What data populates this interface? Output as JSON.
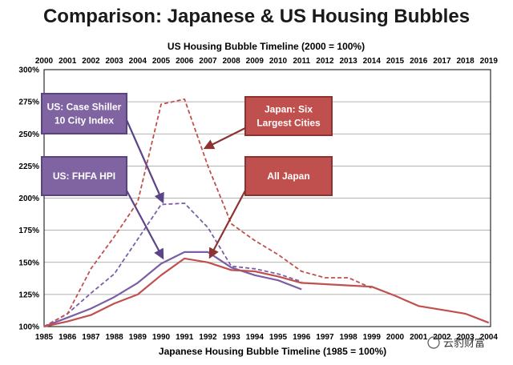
{
  "chart_data": {
    "type": "line",
    "title": "Comparison: Japanese & US Housing Bubbles",
    "top_axis_title": "US Housing Bubble Timeline (2000 = 100%)",
    "bottom_axis_title": "Japanese Housing Bubble Timeline (1985 = 100%)",
    "x_top_ticks": [
      "2000",
      "2001",
      "2002",
      "2003",
      "2004",
      "2005",
      "2006",
      "2007",
      "2008",
      "2009",
      "2010",
      "2011",
      "2012",
      "2013",
      "2014",
      "2015",
      "2016",
      "2017",
      "2018",
      "2019"
    ],
    "x_bottom_ticks": [
      "1985",
      "1986",
      "1987",
      "1988",
      "1989",
      "1990",
      "1991",
      "1992",
      "1993",
      "1994",
      "1995",
      "1996",
      "1997",
      "1998",
      "1999",
      "2000",
      "2001",
      "2002",
      "2003",
      "2004"
    ],
    "y_ticks": [
      "100%",
      "125%",
      "150%",
      "175%",
      "200%",
      "225%",
      "250%",
      "275%",
      "300%"
    ],
    "ylim": [
      100,
      300
    ],
    "xlim": [
      0,
      19
    ],
    "series": [
      {
        "name": "US: Case Shiller 10 City Index",
        "color": "#7b5ea7",
        "dash": true,
        "x": [
          0,
          1,
          2,
          3,
          4,
          5,
          6,
          7,
          8,
          9,
          10,
          11
        ],
        "values": [
          100,
          110,
          126,
          141,
          168,
          195,
          196,
          177,
          147,
          145,
          141,
          135
        ]
      },
      {
        "name": "US: FHFA HPI",
        "color": "#7b5ea7",
        "dash": false,
        "x": [
          0,
          1,
          2,
          3,
          4,
          5,
          6,
          7,
          8,
          9,
          10,
          11
        ],
        "values": [
          100,
          107,
          114,
          123,
          134,
          149,
          158,
          158,
          146,
          140,
          136,
          129
        ]
      },
      {
        "name": "Japan: Six Largest Cities",
        "color": "#c0504d",
        "dash": true,
        "x": [
          0,
          1,
          2,
          3,
          4,
          5,
          6,
          7,
          8,
          9,
          10,
          11,
          12,
          13,
          14
        ],
        "values": [
          100,
          110,
          145,
          170,
          197,
          273,
          277,
          225,
          180,
          167,
          156,
          143,
          138,
          138,
          130
        ]
      },
      {
        "name": "All Japan",
        "color": "#c0504d",
        "dash": false,
        "x": [
          0,
          1,
          2,
          3,
          4,
          5,
          6,
          7,
          8,
          9,
          10,
          11,
          12,
          13,
          14,
          15,
          16,
          17,
          18,
          19
        ],
        "values": [
          100,
          104,
          109,
          118,
          125,
          140,
          153,
          150,
          144,
          143,
          139,
          134,
          133,
          132,
          131,
          124,
          116,
          113,
          110,
          103
        ]
      }
    ],
    "annotations": [
      {
        "text": [
          "US: Case Shiller",
          "10 City Index"
        ],
        "fill": "#8064a2",
        "stroke": "#5a4480"
      },
      {
        "text": [
          "US: FHFA HPI"
        ],
        "fill": "#8064a2",
        "stroke": "#5a4480"
      },
      {
        "text": [
          "Japan: Six",
          "Largest Cities"
        ],
        "fill": "#c0504d",
        "stroke": "#8c3331"
      },
      {
        "text": [
          "All Japan"
        ],
        "fill": "#c0504d",
        "stroke": "#8c3331"
      }
    ]
  },
  "watermark": "云豹财富"
}
